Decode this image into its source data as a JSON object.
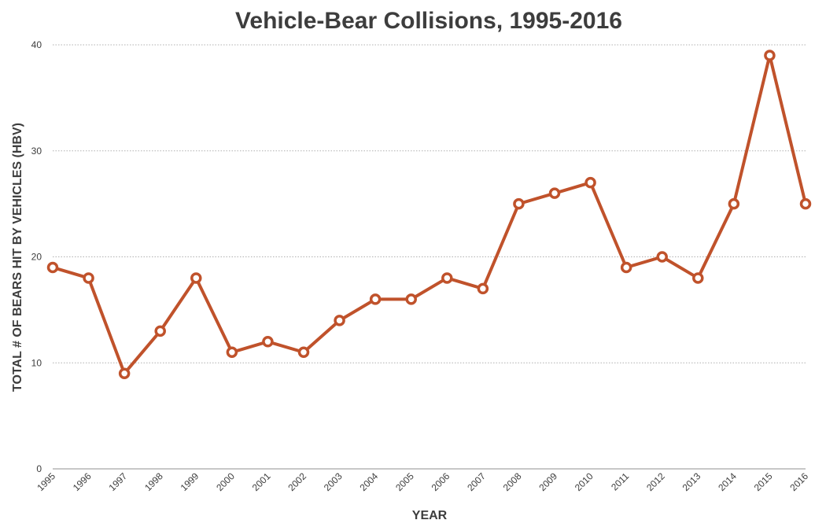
{
  "chart_data": {
    "type": "line",
    "title": "Vehicle-Bear Collisions, 1995-2016",
    "xlabel": "YEAR",
    "ylabel": "TOTAL # OF BEARS HIT BY VEHICLES  (HBV)",
    "x": [
      "1995",
      "1996",
      "1997",
      "1998",
      "1999",
      "2000",
      "2001",
      "2002",
      "2003",
      "2004",
      "2005",
      "2006",
      "2007",
      "2008",
      "2009",
      "2010",
      "2011",
      "2012",
      "2013",
      "2014",
      "2015",
      "2016"
    ],
    "series": [
      {
        "values": [
          19,
          18,
          9,
          13,
          18,
          11,
          12,
          11,
          14,
          16,
          16,
          18,
          17,
          25,
          26,
          27,
          19,
          20,
          18,
          25,
          39,
          25
        ]
      }
    ],
    "ylim": [
      0,
      40
    ],
    "yticks": [
      0,
      10,
      20,
      30,
      40
    ],
    "grid": true,
    "colors": {
      "line": "#c0522b",
      "marker_fill": "#ffffff"
    }
  }
}
